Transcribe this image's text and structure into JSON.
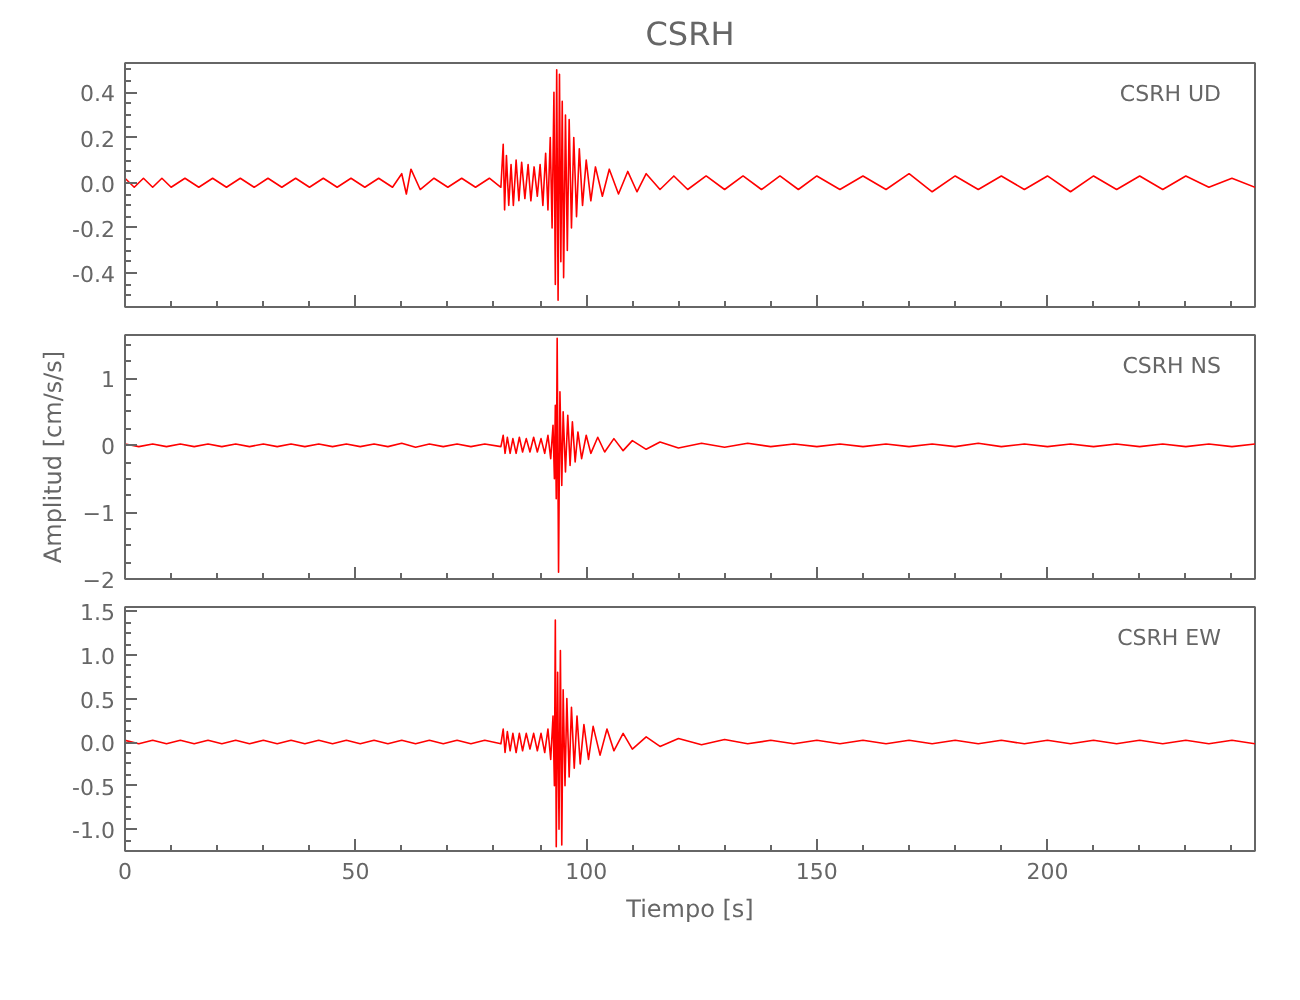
{
  "chart_data": [
    {
      "type": "line",
      "title": "CSRH",
      "annotations": [
        "CSRH   UD"
      ],
      "xlim": [
        0,
        245
      ],
      "xticks": [
        0,
        50,
        100,
        150,
        200
      ],
      "ylim": [
        -0.55,
        0.53
      ],
      "yticks": [
        {
          "value": -0.4,
          "label": "-0.4"
        },
        {
          "value": -0.2,
          "label": "-0.2"
        },
        {
          "value": 0,
          "label": "0.0"
        },
        {
          "value": 0.2,
          "label": "0.2"
        },
        {
          "value": 0.4,
          "label": "0.4"
        }
      ],
      "tick_labels": "y",
      "x": [
        0,
        2,
        4,
        6,
        8,
        10,
        13,
        16,
        19,
        22,
        25,
        28,
        31,
        34,
        37,
        40,
        43,
        46,
        49,
        52,
        55,
        58,
        60,
        61,
        62,
        64,
        67,
        70,
        73,
        76,
        79,
        81.5,
        82,
        82.3,
        82.7,
        83.2,
        83.7,
        84.2,
        84.8,
        85.4,
        86,
        86.7,
        87.4,
        88,
        88.7,
        89.4,
        90,
        90.6,
        91.2,
        91.7,
        92.2,
        92.6,
        93,
        93.3,
        93.6,
        93.9,
        94.2,
        94.5,
        94.8,
        95.1,
        95.5,
        95.9,
        96.3,
        96.8,
        97.3,
        97.9,
        98.5,
        99.2,
        100,
        101,
        102,
        103.5,
        105,
        107,
        109,
        111,
        113,
        116,
        119,
        122,
        126,
        130,
        134,
        138,
        142,
        146,
        150,
        155,
        160,
        165,
        170,
        175,
        180,
        185,
        190,
        195,
        200,
        205,
        210,
        215,
        220,
        225,
        230,
        235,
        240,
        245
      ],
      "series": [
        {
          "color": "#ff0000",
          "values": [
            0.02,
            -0.02,
            0.02,
            -0.02,
            0.02,
            -0.02,
            0.02,
            -0.02,
            0.02,
            -0.02,
            0.02,
            -0.02,
            0.02,
            -0.02,
            0.02,
            -0.02,
            0.02,
            -0.02,
            0.02,
            -0.02,
            0.02,
            -0.02,
            0.04,
            -0.05,
            0.06,
            -0.03,
            0.02,
            -0.02,
            0.02,
            -0.02,
            0.02,
            -0.02,
            0.17,
            -0.12,
            0.12,
            -0.1,
            0.08,
            -0.1,
            0.1,
            -0.08,
            0.09,
            -0.07,
            0.08,
            -0.08,
            0.07,
            -0.06,
            0.08,
            -0.1,
            0.13,
            -0.12,
            0.2,
            -0.2,
            0.4,
            -0.45,
            0.5,
            -0.52,
            0.48,
            -0.35,
            0.36,
            -0.42,
            0.3,
            -0.3,
            0.28,
            -0.2,
            0.2,
            -0.15,
            0.15,
            -0.1,
            0.1,
            -0.08,
            0.07,
            -0.06,
            0.06,
            -0.05,
            0.05,
            -0.04,
            0.04,
            -0.03,
            0.03,
            -0.03,
            0.03,
            -0.03,
            0.03,
            -0.03,
            0.03,
            -0.03,
            0.03,
            -0.03,
            0.03,
            -0.03,
            0.04,
            -0.04,
            0.03,
            -0.03,
            0.03,
            -0.03,
            0.03,
            -0.04,
            0.03,
            -0.03,
            0.03,
            -0.03,
            0.03,
            -0.02,
            0.02,
            -0.02
          ]
        }
      ]
    },
    {
      "type": "line",
      "ylabel": "Amplitud [cm/s/s]",
      "annotations": [
        "CSRH   NS"
      ],
      "xlim": [
        0,
        245
      ],
      "xticks": [
        0,
        50,
        100,
        150,
        200
      ],
      "ylim": [
        -2,
        1.65
      ],
      "yticks": [
        -2,
        -1,
        0,
        1
      ],
      "tick_labels": "y",
      "x": [
        0,
        3,
        6,
        9,
        12,
        15,
        18,
        21,
        24,
        27,
        30,
        33,
        36,
        39,
        42,
        45,
        48,
        51,
        54,
        57,
        60,
        63,
        66,
        69,
        72,
        75,
        78,
        81.5,
        82,
        82.4,
        82.9,
        83.5,
        84.1,
        84.8,
        85.5,
        86.2,
        87,
        87.8,
        88.6,
        89.4,
        90.2,
        91,
        91.7,
        92.3,
        92.8,
        93.1,
        93.3,
        93.5,
        93.7,
        94,
        94.3,
        94.7,
        95,
        95.5,
        96,
        96.5,
        97,
        97.6,
        98.2,
        99,
        100,
        101,
        102.5,
        104,
        106,
        108,
        110,
        113,
        116,
        120,
        125,
        130,
        135,
        140,
        145,
        150,
        155,
        160,
        165,
        170,
        175,
        180,
        185,
        190,
        195,
        200,
        205,
        210,
        215,
        220,
        225,
        230,
        235,
        240,
        245
      ],
      "series": [
        {
          "color": "#ff0000",
          "values": [
            0.02,
            -0.02,
            0.02,
            -0.02,
            0.02,
            -0.02,
            0.02,
            -0.02,
            0.02,
            -0.02,
            0.02,
            -0.02,
            0.02,
            -0.02,
            0.02,
            -0.02,
            0.02,
            -0.02,
            0.02,
            -0.02,
            0.03,
            -0.03,
            0.02,
            -0.02,
            0.02,
            -0.02,
            0.02,
            -0.02,
            0.15,
            -0.12,
            0.12,
            -0.12,
            0.1,
            -0.12,
            0.12,
            -0.1,
            0.1,
            -0.1,
            0.12,
            -0.1,
            0.1,
            -0.12,
            0.15,
            -0.2,
            0.3,
            -0.5,
            0.6,
            -0.8,
            1.6,
            -1.9,
            0.8,
            -0.6,
            0.5,
            -0.4,
            0.45,
            -0.3,
            0.35,
            -0.25,
            0.2,
            -0.2,
            0.15,
            -0.12,
            0.12,
            -0.1,
            0.1,
            -0.08,
            0.07,
            -0.06,
            0.05,
            -0.04,
            0.03,
            -0.03,
            0.03,
            -0.02,
            0.02,
            -0.02,
            0.02,
            -0.02,
            0.02,
            -0.02,
            0.02,
            -0.02,
            0.03,
            -0.02,
            0.02,
            -0.02,
            0.02,
            -0.02,
            0.02,
            -0.02,
            0.02,
            -0.02,
            0.02,
            -0.02,
            0.02
          ]
        }
      ]
    },
    {
      "type": "line",
      "xlabel": "Tiempo [s]",
      "annotations": [
        "CSRH   EW"
      ],
      "xlim": [
        0,
        245
      ],
      "xticks": [
        0,
        50,
        100,
        150,
        200
      ],
      "ylim": [
        -1.25,
        1.55
      ],
      "yticks": [
        {
          "value": -1,
          "label": "-1.0"
        },
        {
          "value": -0.5,
          "label": "-0.5"
        },
        {
          "value": 0,
          "label": "0.0"
        },
        {
          "value": 0.5,
          "label": "0.5"
        },
        {
          "value": 1,
          "label": "1.0"
        },
        {
          "value": 1.5,
          "label": "1.5"
        }
      ],
      "x": [
        0,
        3,
        6,
        9,
        12,
        15,
        18,
        21,
        24,
        27,
        30,
        33,
        36,
        39,
        42,
        45,
        48,
        51,
        54,
        57,
        60,
        63,
        66,
        69,
        72,
        75,
        78,
        81.5,
        82,
        82.4,
        82.9,
        83.5,
        84.1,
        84.8,
        85.5,
        86.2,
        87,
        87.8,
        88.6,
        89.4,
        90.2,
        91,
        91.7,
        92.3,
        92.8,
        93.1,
        93.3,
        93.5,
        93.8,
        94.1,
        94.4,
        94.7,
        95,
        95.4,
        95.8,
        96.3,
        96.8,
        97.4,
        98,
        98.7,
        99.5,
        100.5,
        101.5,
        103,
        104.5,
        106,
        108,
        110,
        113,
        116,
        120,
        125,
        130,
        135,
        140,
        145,
        150,
        155,
        160,
        165,
        170,
        175,
        180,
        185,
        190,
        195,
        200,
        205,
        210,
        215,
        220,
        225,
        230,
        235,
        240,
        245
      ],
      "series": [
        {
          "color": "#ff0000",
          "values": [
            0.02,
            -0.02,
            0.02,
            -0.02,
            0.02,
            -0.02,
            0.02,
            -0.02,
            0.02,
            -0.02,
            0.02,
            -0.02,
            0.02,
            -0.02,
            0.02,
            -0.02,
            0.02,
            -0.02,
            0.02,
            -0.02,
            0.02,
            -0.02,
            0.02,
            -0.02,
            0.02,
            -0.02,
            0.02,
            -0.02,
            0.15,
            -0.12,
            0.12,
            -0.1,
            0.1,
            -0.12,
            0.1,
            -0.1,
            0.1,
            -0.08,
            0.1,
            -0.1,
            0.1,
            -0.12,
            0.15,
            -0.2,
            0.3,
            -0.5,
            1.4,
            -1.2,
            0.8,
            -1.0,
            1.05,
            -1.18,
            0.6,
            -0.5,
            0.5,
            -0.4,
            0.4,
            -0.3,
            0.3,
            -0.25,
            0.2,
            -0.2,
            0.18,
            -0.15,
            0.15,
            -0.1,
            0.1,
            -0.08,
            0.06,
            -0.05,
            0.04,
            -0.03,
            0.03,
            -0.02,
            0.02,
            -0.02,
            0.02,
            -0.02,
            0.02,
            -0.02,
            0.02,
            -0.02,
            0.02,
            -0.02,
            0.02,
            -0.02,
            0.02,
            -0.02,
            0.02,
            -0.02,
            0.02,
            -0.02,
            0.02,
            -0.02,
            0.02,
            -0.02
          ]
        }
      ]
    }
  ]
}
